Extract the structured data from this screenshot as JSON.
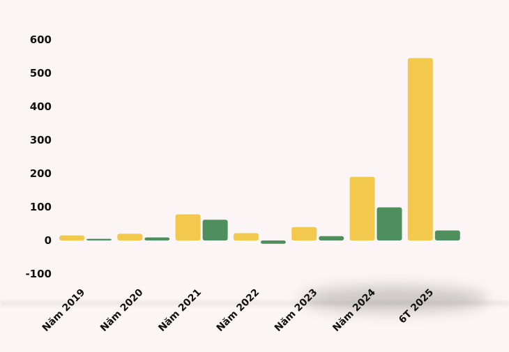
{
  "chart_data": {
    "type": "bar",
    "categories": [
      "Năm 2019",
      "Năm 2020",
      "Năm 2021",
      "Năm 2022",
      "Năm 2023",
      "Năm 2024",
      "6T 2025"
    ],
    "series": [
      {
        "color": "#f2c94c",
        "values": [
          15,
          20,
          78,
          22,
          40,
          190,
          545
        ]
      },
      {
        "color": "#4f8f5e",
        "values": [
          5,
          9,
          62,
          -10,
          13,
          99,
          30
        ]
      }
    ],
    "ylim": [
      -100,
      600
    ],
    "yticks": [
      -100,
      0,
      100,
      200,
      300,
      400,
      500,
      600
    ],
    "ytick_labels": [
      "-100",
      "0",
      "100",
      "200",
      "300",
      "400",
      "500",
      "600"
    ],
    "grid": false,
    "legend": "none",
    "title": "",
    "xlabel": "",
    "ylabel": ""
  }
}
